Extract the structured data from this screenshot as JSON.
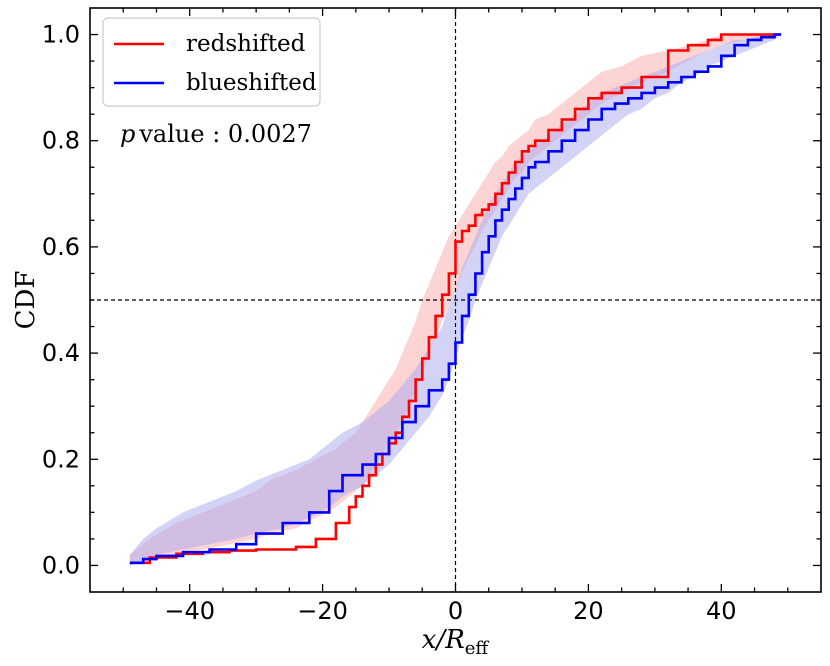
{
  "chart_data": {
    "type": "line",
    "title": "",
    "xlabel": "x/R_eff",
    "xlabel_italic": "x/R",
    "xlabel_sub": "eff",
    "ylabel": "CDF",
    "xlim": [
      -55,
      55
    ],
    "ylim": [
      -0.05,
      1.05
    ],
    "xticks": [
      -40,
      -20,
      0,
      20,
      40
    ],
    "xtick_labels": [
      "−40",
      "−20",
      "0",
      "20",
      "40"
    ],
    "yticks": [
      0.0,
      0.2,
      0.4,
      0.6,
      0.8,
      1.0
    ],
    "ytick_labels": [
      "0.0",
      "0.2",
      "0.4",
      "0.6",
      "0.8",
      "1.0"
    ],
    "reference_lines": {
      "vertical_x": 0,
      "horizontal_y": 0.5
    },
    "annotation": {
      "italic": "p",
      "text": "value : 0.0027"
    },
    "legend_position": "top-left",
    "series": [
      {
        "name": "redshifted",
        "color": "#ff0000",
        "band_color": "#f8a0a0",
        "x": [
          -49,
          -46,
          -42,
          -38,
          -34,
          -30,
          -28,
          -24,
          -21,
          -18,
          -16,
          -15,
          -14,
          -13,
          -12,
          -11,
          -10,
          -9,
          -8,
          -7,
          -6,
          -5,
          -4,
          -3,
          -2,
          -1,
          0,
          1,
          2,
          3,
          4,
          5,
          6,
          7,
          8,
          9,
          10,
          11,
          12,
          14,
          16,
          18,
          20,
          22,
          25,
          28,
          32,
          35,
          38,
          40,
          44,
          49
        ],
        "y": [
          0.005,
          0.015,
          0.022,
          0.025,
          0.028,
          0.03,
          0.03,
          0.035,
          0.05,
          0.08,
          0.11,
          0.13,
          0.15,
          0.17,
          0.19,
          0.21,
          0.23,
          0.25,
          0.28,
          0.31,
          0.35,
          0.39,
          0.43,
          0.47,
          0.51,
          0.55,
          0.61,
          0.63,
          0.64,
          0.66,
          0.67,
          0.68,
          0.7,
          0.72,
          0.74,
          0.76,
          0.78,
          0.79,
          0.8,
          0.82,
          0.84,
          0.86,
          0.88,
          0.89,
          0.9,
          0.92,
          0.97,
          0.98,
          0.99,
          1.0,
          1.0,
          1.0
        ],
        "band_upper": [
          0.02,
          0.05,
          0.08,
          0.1,
          0.12,
          0.14,
          0.16,
          0.18,
          0.2,
          0.22,
          0.24,
          0.25,
          0.27,
          0.29,
          0.31,
          0.33,
          0.35,
          0.37,
          0.4,
          0.43,
          0.46,
          0.5,
          0.53,
          0.56,
          0.59,
          0.62,
          0.64,
          0.66,
          0.68,
          0.7,
          0.72,
          0.74,
          0.76,
          0.77,
          0.79,
          0.8,
          0.81,
          0.82,
          0.84,
          0.85,
          0.87,
          0.89,
          0.91,
          0.93,
          0.94,
          0.96,
          0.97,
          0.98,
          0.99,
          1.0,
          1.0,
          1.0
        ],
        "band_lower": [
          0.0,
          0.01,
          0.02,
          0.03,
          0.04,
          0.05,
          0.06,
          0.07,
          0.09,
          0.11,
          0.13,
          0.14,
          0.15,
          0.17,
          0.19,
          0.21,
          0.23,
          0.25,
          0.27,
          0.3,
          0.33,
          0.36,
          0.4,
          0.43,
          0.46,
          0.49,
          0.52,
          0.55,
          0.58,
          0.6,
          0.63,
          0.65,
          0.67,
          0.69,
          0.71,
          0.73,
          0.74,
          0.76,
          0.77,
          0.79,
          0.81,
          0.83,
          0.85,
          0.87,
          0.89,
          0.91,
          0.93,
          0.95,
          0.97,
          0.98,
          0.99,
          1.0
        ]
      },
      {
        "name": "blueshifted",
        "color": "#0000ff",
        "band_color": "#a8a8f0",
        "x": [
          -49,
          -47,
          -45,
          -41,
          -37,
          -33,
          -30,
          -26,
          -22,
          -19,
          -17,
          -14,
          -12,
          -10,
          -8,
          -6,
          -4,
          -2,
          -1,
          0,
          1,
          2,
          3,
          4,
          5,
          6,
          7,
          8,
          9,
          10,
          11,
          12,
          14,
          16,
          18,
          20,
          22,
          24,
          26,
          28,
          30,
          32,
          34,
          36,
          38,
          40,
          42,
          44,
          46,
          48,
          49
        ],
        "y": [
          0.005,
          0.012,
          0.018,
          0.025,
          0.03,
          0.04,
          0.06,
          0.08,
          0.1,
          0.14,
          0.17,
          0.19,
          0.21,
          0.24,
          0.27,
          0.3,
          0.33,
          0.35,
          0.38,
          0.42,
          0.47,
          0.51,
          0.55,
          0.59,
          0.62,
          0.65,
          0.67,
          0.69,
          0.71,
          0.73,
          0.75,
          0.76,
          0.78,
          0.8,
          0.82,
          0.84,
          0.86,
          0.87,
          0.88,
          0.89,
          0.9,
          0.91,
          0.92,
          0.93,
          0.94,
          0.96,
          0.98,
          0.99,
          0.995,
          1.0,
          1.0
        ],
        "band_upper": [
          0.02,
          0.05,
          0.07,
          0.1,
          0.12,
          0.14,
          0.16,
          0.18,
          0.2,
          0.23,
          0.25,
          0.27,
          0.29,
          0.31,
          0.34,
          0.37,
          0.41,
          0.45,
          0.49,
          0.52,
          0.56,
          0.59,
          0.62,
          0.65,
          0.68,
          0.7,
          0.72,
          0.74,
          0.76,
          0.77,
          0.78,
          0.79,
          0.81,
          0.83,
          0.85,
          0.87,
          0.89,
          0.9,
          0.91,
          0.92,
          0.93,
          0.94,
          0.95,
          0.96,
          0.97,
          0.98,
          0.99,
          0.99,
          1.0,
          1.0,
          1.0
        ],
        "band_lower": [
          0.0,
          0.01,
          0.02,
          0.03,
          0.04,
          0.05,
          0.06,
          0.07,
          0.09,
          0.11,
          0.13,
          0.15,
          0.17,
          0.19,
          0.22,
          0.25,
          0.28,
          0.32,
          0.35,
          0.39,
          0.43,
          0.46,
          0.5,
          0.53,
          0.56,
          0.59,
          0.62,
          0.64,
          0.66,
          0.68,
          0.7,
          0.71,
          0.73,
          0.75,
          0.77,
          0.79,
          0.81,
          0.83,
          0.85,
          0.86,
          0.88,
          0.89,
          0.91,
          0.92,
          0.94,
          0.95,
          0.96,
          0.97,
          0.98,
          0.99,
          1.0
        ]
      }
    ]
  }
}
